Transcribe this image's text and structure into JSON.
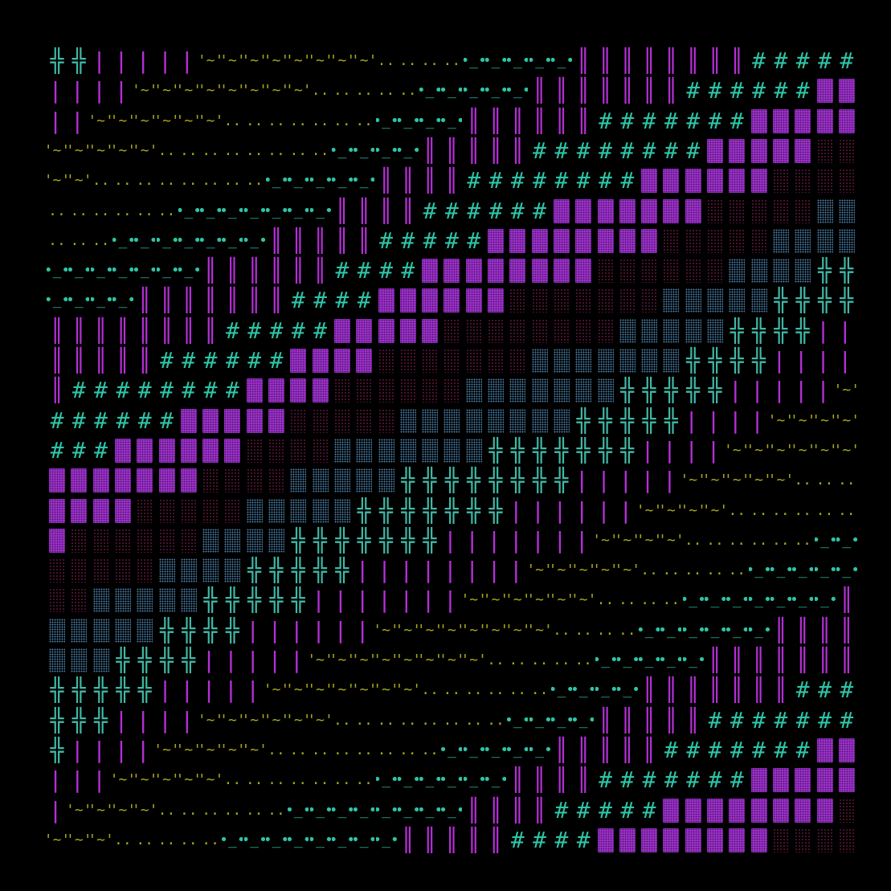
{
  "colors": {
    "background": "#000000",
    "olive": "#a8a81a",
    "teal": "#2ec4a6",
    "purple": "#9a2fc9",
    "maroon": "#7a1e4a",
    "steel": "#4a7fa8",
    "cross": "#3fb8a6",
    "magenta": "#b52fd6"
  },
  "glyph_names": {
    "tilde": "tilde-wave-glyph",
    "dots": "double-dot-glyph",
    "dash": "dot-dash-glyph",
    "bar": "double-bar-glyph",
    "hash": "hash-glyph",
    "block": "dense-block-glyph",
    "sparse": "sparse-dot-glyph",
    "light": "light-dot-glyph",
    "cross": "double-cross-glyph",
    "pipe": "double-pipe-glyph"
  }
}
